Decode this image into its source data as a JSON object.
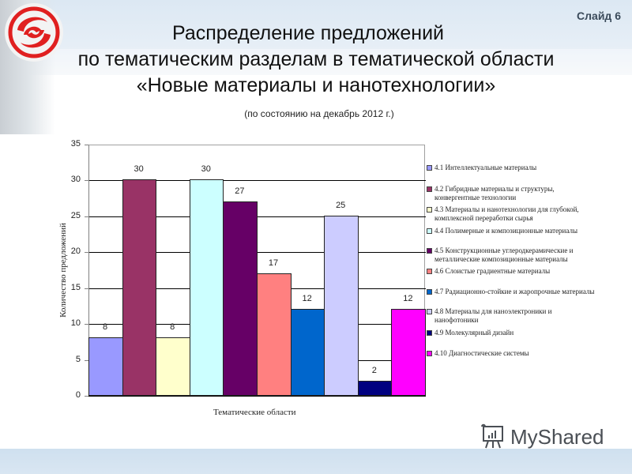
{
  "slide": {
    "number_label": "Слайд 6",
    "title_lines": [
      "Распределение предложений",
      "по тематическим разделам в тематической области",
      "«Новые материалы и нанотехнологии»"
    ],
    "subtitle": "(по состоянию на декабрь 2012 г.)",
    "watermark": "MyShared",
    "logo_icon": "swirl-logo-icon",
    "colors": {
      "logo_red": "#e02020",
      "header_bg": "#dce8f3",
      "footer_bg": "#cfe0ef"
    }
  },
  "chart_data": {
    "type": "bar",
    "title": "",
    "xlabel": "Тематические области",
    "ylabel": "Количество предложений",
    "ylim": [
      0,
      35
    ],
    "yticks": [
      "0",
      "5",
      "10",
      "15",
      "20",
      "25",
      "30",
      "35"
    ],
    "grid": true,
    "legend_position": "right",
    "categories": [
      "4.1",
      "4.2",
      "4.3",
      "4.4",
      "4.5",
      "4.6",
      "4.7",
      "4.8",
      "4.9",
      "4.10"
    ],
    "series": [
      {
        "name": "4.1 Интеллектуальные материалы",
        "value": 8,
        "label": "8",
        "color": "#9999ff"
      },
      {
        "name": "4.2 Гибридные материалы и структуры, конвергентные технологии",
        "value": 30,
        "label": "30",
        "color": "#993366"
      },
      {
        "name": "4.3 Материалы и нанотехнологии для глубокой, комплексной переработки сырья",
        "value": 8,
        "label": "8",
        "color": "#ffffcc"
      },
      {
        "name": "4.4 Полимерные и композиционные материалы",
        "value": 30,
        "label": "30",
        "color": "#ccffff"
      },
      {
        "name": "4.5 Конструкционные углеродкерамические и металлические композиционные материалы",
        "value": 27,
        "label": "27",
        "color": "#660066"
      },
      {
        "name": "4.6 Слоистые градиентные материалы",
        "value": 17,
        "label": "17",
        "color": "#ff8080"
      },
      {
        "name": "4.7 Радиационно-стойкие и жаропрочные материалы",
        "value": 12,
        "label": "12",
        "color": "#0066cc"
      },
      {
        "name": "4.8 Материалы для наноэлектроники и нанофотоники",
        "value": 25,
        "label": "25",
        "color": "#ccccff"
      },
      {
        "name": "4.9 Молекулярный дизайн",
        "value": 2,
        "label": "2",
        "color": "#000080"
      },
      {
        "name": "4.10 Диагностические системы",
        "value": 12,
        "label": "12",
        "color": "#ff00ff"
      }
    ],
    "legend_lines": [
      [
        "4.1 Интеллектуальные материалы"
      ],
      [
        "4.2 Гибридные материалы и структуры,",
        "конвергентные технологии"
      ],
      [
        "4.3 Материалы и нанотехнологии для глубокой,",
        "комплексной переработки сырья"
      ],
      [
        "4.4 Полимерные и композиционные материалы"
      ],
      [
        "4.5 Конструкционные углеродкерамические и",
        "металлические композиционные материалы"
      ],
      [
        "4.6 Слоистые градиентные материалы"
      ],
      [
        "4.7 Радиационно-стойкие и жаропрочные материалы"
      ],
      [
        "4.8 Материалы для наноэлектроники и",
        "нанофотоники"
      ],
      [
        "4.9 Молекулярный дизайн"
      ],
      [
        "4.10 Диагностические системы"
      ]
    ]
  }
}
